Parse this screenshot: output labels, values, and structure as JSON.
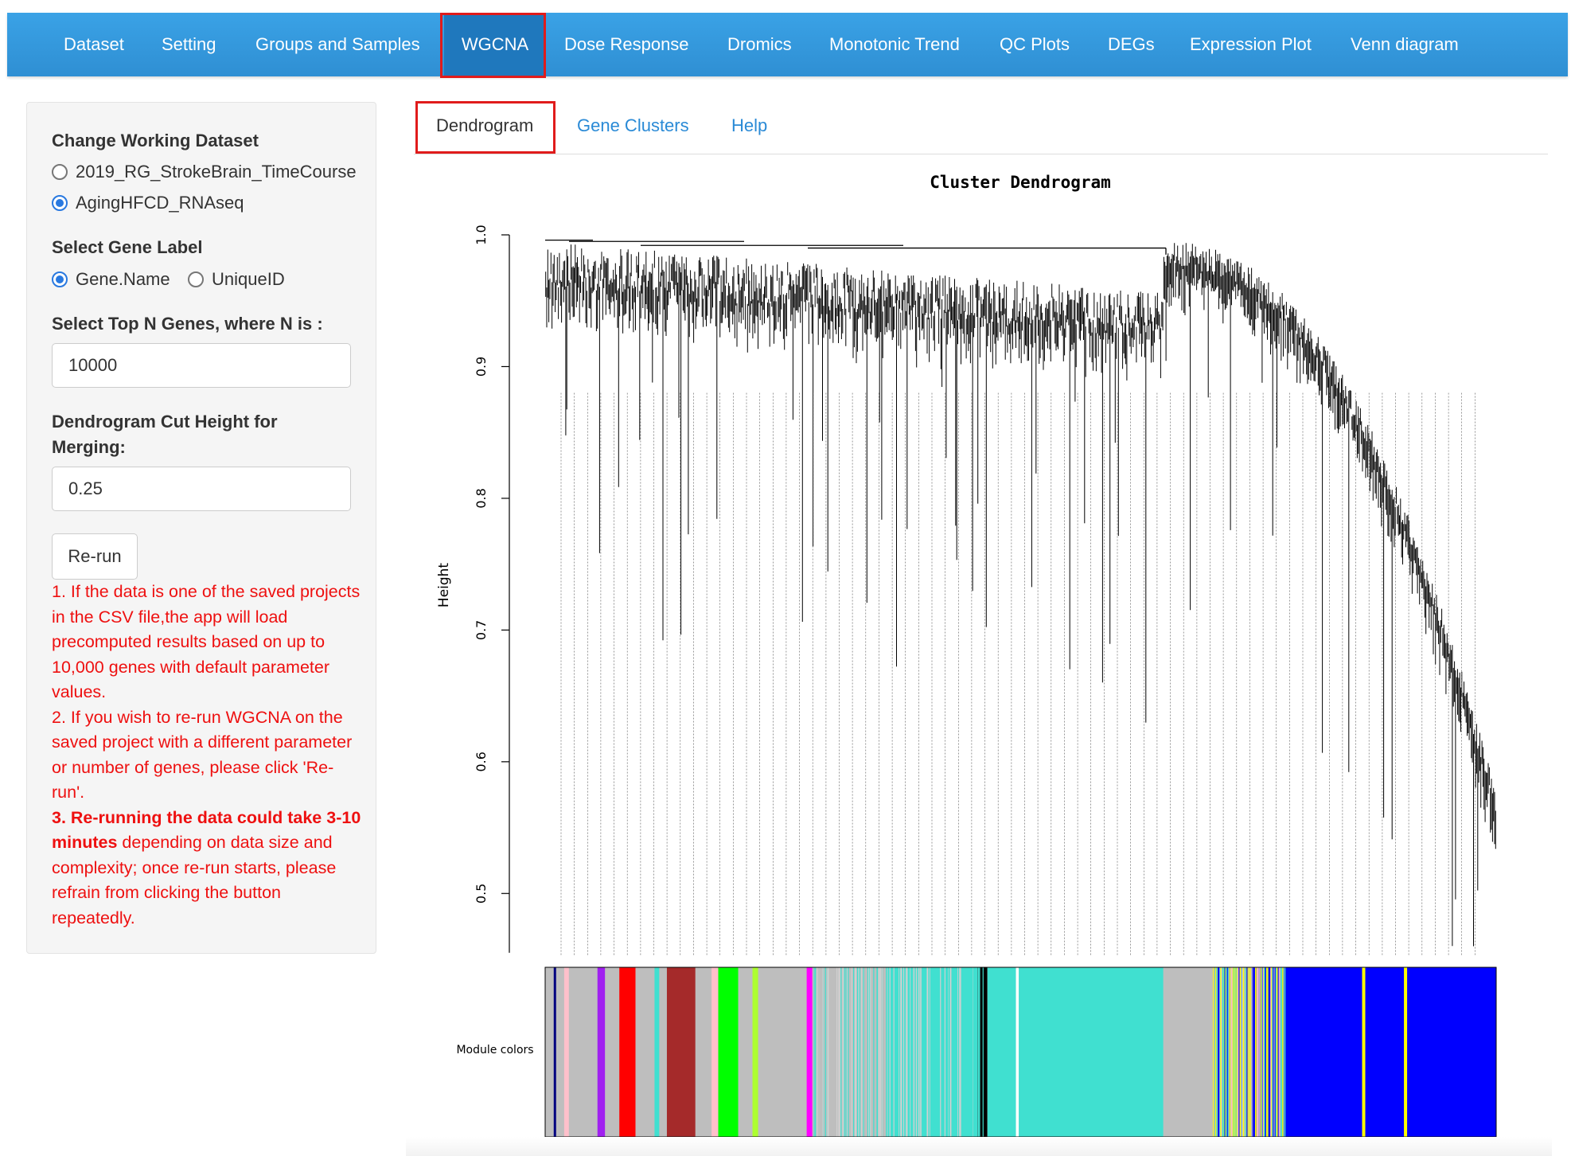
{
  "navbar": {
    "items": [
      "Dataset",
      "Setting",
      "Groups and Samples",
      "WGCNA",
      "Dose Response",
      "Dromics",
      "Monotonic Trend",
      "QC Plots",
      "DEGs",
      "Expression Plot",
      "Venn diagram"
    ],
    "active": "WGCNA"
  },
  "sidebar": {
    "dataset_label": "Change Working Dataset",
    "datasets": [
      "2019_RG_StrokeBrain_TimeCourse",
      "AgingHFCD_RNAseq"
    ],
    "selected_dataset": "AgingHFCD_RNAseq",
    "gene_label_label": "Select Gene Label",
    "gene_labels": [
      "Gene.Name",
      "UniqueID"
    ],
    "selected_gene_label": "Gene.Name",
    "topn_label": "Select Top N Genes, where N is :",
    "topn_value": "10000",
    "cut_label_line1": "Dendrogram Cut Height for",
    "cut_label_line2": "Merging:",
    "cut_value": "0.25",
    "rerun_label": "Re-run",
    "note1": "1. If the data is one of the saved projects in the CSV file,the app will load precomputed results based on up to 10,000 genes with default parameter values.",
    "note2": "2. If you wish to re-run WGCNA on the saved project with a different parameter or number of genes, please click 'Re-run'.",
    "note3_bold": "3. Re-running the data could take 3-10 minutes",
    "note3_rest": " depending on data size and complexity; once re-run starts, please refrain from clicking the button repeatedly."
  },
  "tabs": [
    "Dendrogram",
    "Gene Clusters",
    "Help"
  ],
  "active_tab": "Dendrogram",
  "colors": {
    "navbar": "#3396dc",
    "highlight": "#e01b1b",
    "link": "#2a8ad6",
    "note": "#ee1010"
  },
  "chart_data": {
    "type": "dendrogram",
    "title": "Cluster Dendrogram",
    "ylabel": "Height",
    "yticks": [
      0.5,
      0.6,
      0.7,
      0.8,
      0.9,
      1.0
    ],
    "ylim": [
      0.45,
      1.0
    ],
    "color_bar_label": "Module colors",
    "module_colors": [
      "grey",
      "pink",
      "purple",
      "red",
      "turquoise",
      "brown",
      "green",
      "greenyellow",
      "magenta",
      "black",
      "blue",
      "yellow"
    ]
  }
}
